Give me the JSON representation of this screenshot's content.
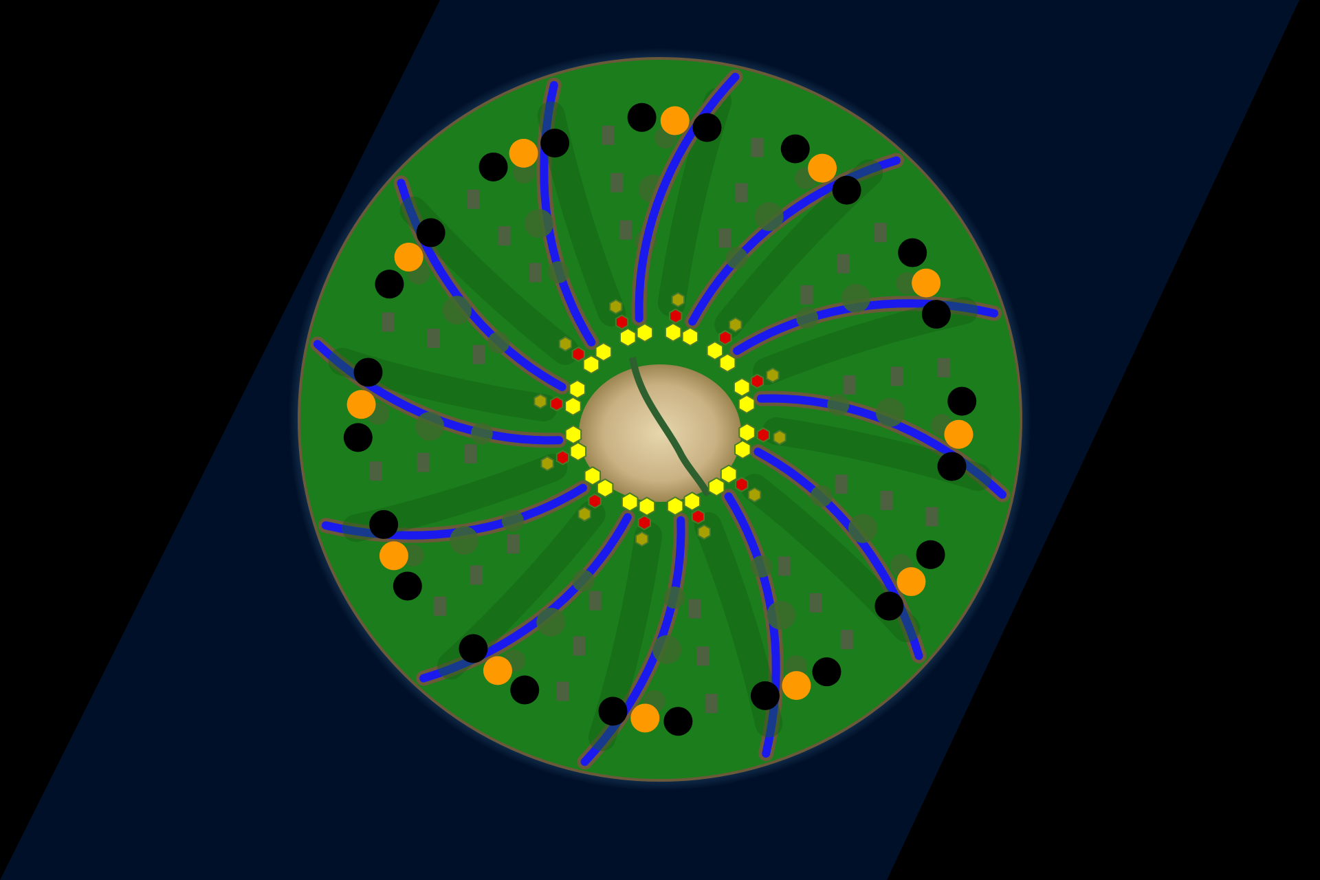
{
  "map": {
    "colors": {
      "void": "#000000",
      "ocean": "#011029",
      "shore": "#3f7fa8",
      "grass": "#1b7d1b",
      "grass_dark": "#146214",
      "dirt_edge": "#6b5a3a",
      "river": "#1a1aee",
      "sand": "#c9b183",
      "sand_light": "#e6d6ad",
      "forest": "#3d6a2c",
      "rock": "#5a5a4a",
      "base_marker": "#000000",
      "gold_mine": "#ff9900",
      "hex_yellow": "#ffff00",
      "hex_red": "#dd0000",
      "hex_olive": "#a6a000"
    },
    "icons": {
      "base": "black-circle-icon",
      "mine": "orange-circle-icon",
      "hex": "hexagon-icon"
    },
    "arms": 12,
    "bases_per_arm": 2,
    "mines_per_arm": 1,
    "hexes_per_arm": 4
  }
}
